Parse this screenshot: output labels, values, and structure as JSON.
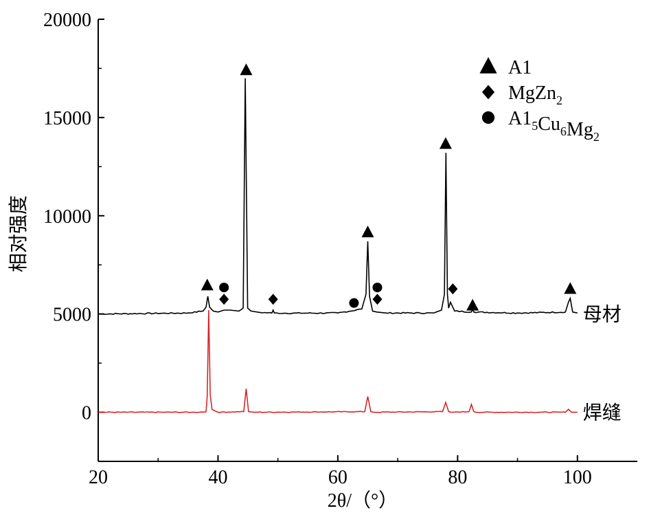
{
  "chart_data": {
    "type": "line",
    "xlabel": "2θ/（°）",
    "ylabel": "相对强度",
    "xlim": [
      20,
      110
    ],
    "ylim": [
      -2500,
      20000
    ],
    "xticks": [
      20,
      40,
      60,
      80,
      100
    ],
    "yticks": [
      0,
      5000,
      10000,
      15000,
      20000
    ],
    "grid": false,
    "legend": {
      "position": "top-right",
      "entries": [
        {
          "marker": "triangle",
          "label": "A1"
        },
        {
          "marker": "diamond",
          "label": "MgZn",
          "sub": "2"
        },
        {
          "marker": "circle",
          "label": "A1",
          "sub": "5",
          "label2": "Cu",
          "sub2": "6",
          "label3": "Mg",
          "sub3": "2"
        }
      ]
    },
    "series": [
      {
        "name": "母材",
        "color": "#000000",
        "baseline": 5000,
        "x": [
          20,
          35,
          37.5,
          38.0,
          38.3,
          38.6,
          39.2,
          40,
          41,
          42,
          43.5,
          44.2,
          44.55,
          44.75,
          44.95,
          45.5,
          47,
          49.0,
          49.2,
          49.4,
          51,
          60,
          64.0,
          64.7,
          65.0,
          65.3,
          65.8,
          66.5,
          68,
          76,
          77.3,
          77.8,
          78.05,
          78.3,
          78.5,
          78.8,
          79.5,
          82.3,
          82.5,
          82.7,
          90,
          98.0,
          98.5,
          98.8,
          99.2,
          100
        ],
        "y": [
          5000,
          5050,
          5150,
          5350,
          5900,
          5350,
          5150,
          5100,
          5200,
          5200,
          5150,
          5300,
          17000,
          11000,
          5300,
          5150,
          5080,
          5050,
          5200,
          5050,
          5040,
          5050,
          5250,
          6000,
          8700,
          5900,
          5150,
          5100,
          5050,
          5050,
          5200,
          6000,
          13200,
          6000,
          5300,
          5600,
          5150,
          5100,
          5250,
          5100,
          5050,
          5100,
          5600,
          5800,
          5100,
          5050
        ]
      },
      {
        "name": "焊缝",
        "color": "#d62728",
        "baseline": 0,
        "x": [
          20,
          36,
          38.0,
          38.2,
          38.45,
          38.7,
          39.0,
          40,
          44.3,
          44.7,
          45.1,
          46,
          64.5,
          65.0,
          65.5,
          66,
          77.5,
          78.0,
          78.5,
          79,
          81.9,
          82.3,
          82.7,
          83,
          98,
          98.5,
          99.0,
          100
        ],
        "y": [
          0,
          0,
          20,
          800,
          5200,
          900,
          150,
          0,
          30,
          1200,
          30,
          0,
          30,
          800,
          30,
          0,
          30,
          500,
          30,
          0,
          30,
          400,
          30,
          0,
          0,
          150,
          0,
          0
        ]
      }
    ],
    "annotations": [
      {
        "marker": "triangle",
        "x": 38.2,
        "y": 6450
      },
      {
        "marker": "diamond",
        "x": 41.0,
        "y": 5750
      },
      {
        "marker": "circle",
        "x": 41.0,
        "y": 6350
      },
      {
        "marker": "triangle",
        "x": 44.7,
        "y": 17400
      },
      {
        "marker": "diamond",
        "x": 49.2,
        "y": 5750
      },
      {
        "marker": "circle",
        "x": 62.7,
        "y": 5560
      },
      {
        "marker": "triangle",
        "x": 65.0,
        "y": 9150
      },
      {
        "marker": "circle",
        "x": 66.6,
        "y": 6350
      },
      {
        "marker": "diamond",
        "x": 66.6,
        "y": 5750
      },
      {
        "marker": "triangle",
        "x": 78.0,
        "y": 13650
      },
      {
        "marker": "diamond",
        "x": 79.2,
        "y": 6280
      },
      {
        "marker": "triangle",
        "x": 82.5,
        "y": 5420
      },
      {
        "marker": "triangle",
        "x": 98.8,
        "y": 6270
      }
    ]
  }
}
